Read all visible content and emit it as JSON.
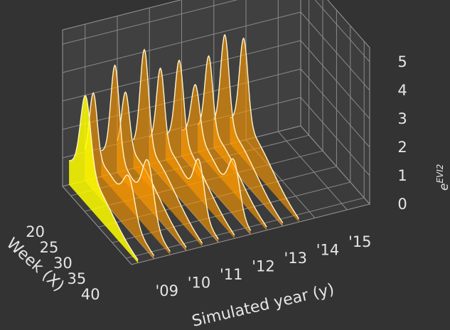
{
  "chart_data": {
    "type": "area",
    "title": "",
    "xlabel": "Week (X)",
    "ylabel": "Simulated year (y)",
    "zlabel_base": "e",
    "zlabel_sup": "EVI2",
    "x_ticks": [
      "20",
      "25",
      "30",
      "35",
      "40"
    ],
    "y_ticks": [
      "'09",
      "'10",
      "'11",
      "'12",
      "'13",
      "'14",
      "'15"
    ],
    "z_ticks": [
      "0",
      "1",
      "2",
      "3",
      "4",
      "5"
    ],
    "x_range": [
      17,
      42
    ],
    "y_range": [
      2008.3,
      2015.7
    ],
    "z_range": [
      0,
      5.5
    ],
    "grid": true,
    "colors": {
      "background": "#333333",
      "pane": "#4a4a4a",
      "ribbon_first": "#ffff00",
      "ribbon_rest": "#ff9900",
      "outline": "#fff4c8"
    },
    "series": [
      {
        "year": 2008.5,
        "peaks": [
          {
            "week": 23,
            "height": 2.6,
            "width": 1.8
          }
        ],
        "base": 1.2
      },
      {
        "year": 2009,
        "peaks": [
          {
            "week": 20,
            "height": 2.3,
            "width": 1.4
          },
          {
            "week": 33,
            "height": 1.2,
            "width": 2.0
          }
        ],
        "base": 1.25
      },
      {
        "year": 2009.5,
        "peaks": [
          {
            "week": 22,
            "height": 3.2,
            "width": 1.5
          },
          {
            "week": 34,
            "height": 1.8,
            "width": 2.0
          }
        ],
        "base": 1.3
      },
      {
        "year": 2010,
        "peaks": [
          {
            "week": 20,
            "height": 2.0,
            "width": 1.4
          }
        ],
        "base": 1.3
      },
      {
        "year": 2010.5,
        "peaks": [
          {
            "week": 21,
            "height": 3.4,
            "width": 1.5
          }
        ],
        "base": 1.3
      },
      {
        "year": 2011,
        "peaks": [
          {
            "week": 21,
            "height": 2.6,
            "width": 1.4
          },
          {
            "week": 35,
            "height": 1.6,
            "width": 1.8
          }
        ],
        "base": 1.3
      },
      {
        "year": 2011.5,
        "peaks": [
          {
            "week": 22,
            "height": 2.8,
            "width": 1.5
          }
        ],
        "base": 1.3
      },
      {
        "year": 2012,
        "peaks": [
          {
            "week": 22,
            "height": 1.8,
            "width": 1.5
          },
          {
            "week": 36,
            "height": 1.5,
            "width": 2.0
          }
        ],
        "base": 1.3
      },
      {
        "year": 2012.5,
        "peaks": [
          {
            "week": 21,
            "height": 2.6,
            "width": 1.4
          }
        ],
        "base": 1.3
      },
      {
        "year": 2013,
        "peaks": [
          {
            "week": 21,
            "height": 3.2,
            "width": 1.5
          }
        ],
        "base": 1.3
      },
      {
        "year": 2013.5,
        "peaks": [
          {
            "week": 22,
            "height": 3.0,
            "width": 1.5
          }
        ],
        "base": 1.3
      }
    ]
  }
}
